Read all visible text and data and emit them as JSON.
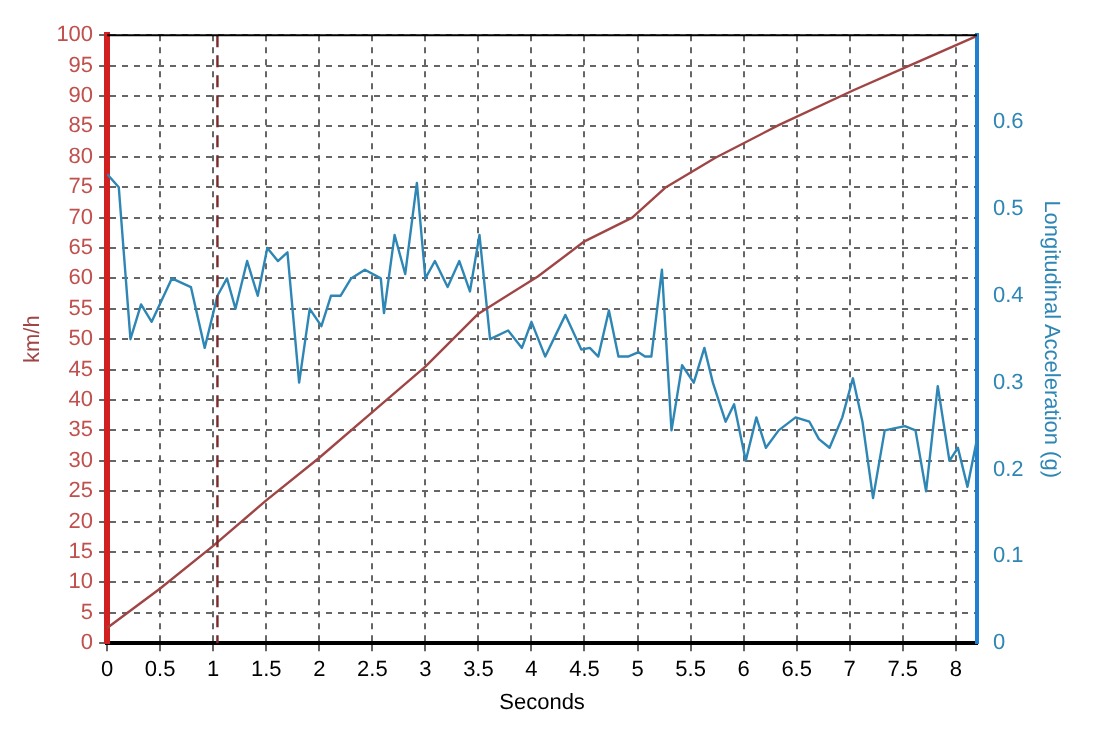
{
  "chart_data": {
    "type": "line",
    "xlabel": "Seconds",
    "ylabel": "km/h",
    "y2label": "Longitudinal Acceleration (g)",
    "xlim": [
      0,
      8.2
    ],
    "xticks": [
      0,
      0.5,
      1,
      1.5,
      2,
      2.5,
      3,
      3.5,
      4,
      4.5,
      5,
      5.5,
      6,
      6.5,
      7,
      7.5,
      8
    ],
    "ylim": [
      0,
      100
    ],
    "yticks": [
      0,
      5,
      10,
      15,
      20,
      25,
      30,
      35,
      40,
      45,
      50,
      55,
      60,
      65,
      70,
      75,
      80,
      85,
      90,
      95,
      100
    ],
    "y2lim": [
      0,
      0.7
    ],
    "y2ticks": [
      0,
      0.1,
      0.2,
      0.3,
      0.4,
      0.5,
      0.6
    ],
    "grid": true,
    "legend": false,
    "series": [
      {
        "color": "#a04545",
        "x": [
          0,
          0.5,
          1,
          1.5,
          2,
          2.5,
          3,
          3.5,
          4.06,
          4.5,
          4.95,
          5.26,
          5.73,
          6.33,
          7.03,
          7.59,
          8.19
        ],
        "values": [
          2.5,
          9,
          16,
          23.5,
          30.5,
          38,
          45.5,
          54.2,
          60.3,
          66.1,
          70,
          74.9,
          79.8,
          85.2,
          90.9,
          95.2,
          99.8
        ]
      },
      {
        "color": "#2e86b5",
        "axis": "y2",
        "x": [
          0,
          0.11,
          0.22,
          0.32,
          0.42,
          0.61,
          0.79,
          0.92,
          1.04,
          1.13,
          1.21,
          1.32,
          1.42,
          1.51,
          1.61,
          1.7,
          1.81,
          1.91,
          2.02,
          2.11,
          2.2,
          2.3,
          2.43,
          2.58,
          2.61,
          2.71,
          2.81,
          2.92,
          3.0,
          3.09,
          3.21,
          3.32,
          3.42,
          3.51,
          3.61,
          3.78,
          3.91,
          4.0,
          4.13,
          4.32,
          4.47,
          4.55,
          4.63,
          4.73,
          4.82,
          4.91,
          5.01,
          5.07,
          5.13,
          5.23,
          5.32,
          5.42,
          5.53,
          5.63,
          5.71,
          5.83,
          5.91,
          6.02,
          6.12,
          6.21,
          6.33,
          6.49,
          6.62,
          6.71,
          6.81,
          6.93,
          7.03,
          7.12,
          7.22,
          7.33,
          7.52,
          7.62,
          7.72,
          7.83,
          7.94,
          8.02,
          8.11,
          8.2
        ],
        "values": [
          0.54,
          0.525,
          0.35,
          0.39,
          0.37,
          0.42,
          0.41,
          0.34,
          0.4,
          0.42,
          0.385,
          0.44,
          0.4,
          0.455,
          0.44,
          0.45,
          0.3,
          0.385,
          0.365,
          0.4,
          0.4,
          0.42,
          0.43,
          0.42,
          0.38,
          0.47,
          0.425,
          0.53,
          0.42,
          0.44,
          0.41,
          0.44,
          0.405,
          0.47,
          0.35,
          0.36,
          0.34,
          0.37,
          0.33,
          0.378,
          0.338,
          0.34,
          0.33,
          0.383,
          0.33,
          0.33,
          0.335,
          0.33,
          0.33,
          0.43,
          0.245,
          0.32,
          0.3,
          0.34,
          0.3,
          0.255,
          0.275,
          0.21,
          0.26,
          0.225,
          0.245,
          0.26,
          0.255,
          0.235,
          0.225,
          0.26,
          0.305,
          0.255,
          0.167,
          0.245,
          0.25,
          0.245,
          0.175,
          0.296,
          0.21,
          0.225,
          0.18,
          0.235
        ]
      }
    ],
    "ref_lines": [
      {
        "axis": "x",
        "value": 1.04,
        "color": "#7a2a2a",
        "line_style": "dashed"
      }
    ]
  }
}
